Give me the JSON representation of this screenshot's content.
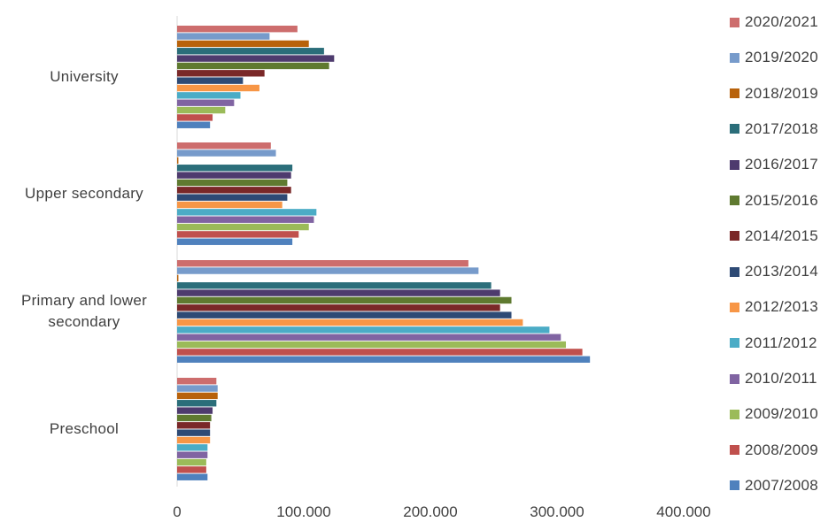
{
  "chart_data": {
    "type": "bar",
    "orientation": "horizontal",
    "title": "",
    "xlabel": "",
    "ylabel": "",
    "xlim": [
      0,
      400000
    ],
    "x_ticks": [
      "0",
      "100.000",
      "200.000",
      "300.000",
      "400.000"
    ],
    "grid": false,
    "legend_position": "right",
    "categories": [
      "University",
      "Upper secondary",
      "Primary and lower secondary",
      "Preschool"
    ],
    "category_labels": [
      [
        "University"
      ],
      [
        "Upper secondary"
      ],
      [
        "Primary and lower",
        "secondary"
      ],
      [
        "Preschool"
      ]
    ],
    "series": [
      {
        "name": "2020/2021",
        "color": "#CD6D6D",
        "values": [
          95000,
          74000,
          230000,
          31000
        ]
      },
      {
        "name": "2019/2020",
        "color": "#779BCB",
        "values": [
          73000,
          78000,
          238000,
          32000
        ]
      },
      {
        "name": "2018/2019",
        "color": "#B8620B",
        "values": [
          104000,
          1000,
          1000,
          32000
        ]
      },
      {
        "name": "2017/2018",
        "color": "#2B6E7A",
        "values": [
          116000,
          91000,
          248000,
          31000
        ]
      },
      {
        "name": "2016/2017",
        "color": "#4E3B6E",
        "values": [
          124000,
          90000,
          255000,
          28000
        ]
      },
      {
        "name": "2015/2016",
        "color": "#5F7A30",
        "values": [
          120000,
          87000,
          264000,
          27000
        ]
      },
      {
        "name": "2014/2015",
        "color": "#7A2828",
        "values": [
          69000,
          90000,
          255000,
          26000
        ]
      },
      {
        "name": "2013/2014",
        "color": "#2E4A75",
        "values": [
          52000,
          87000,
          264000,
          26000
        ]
      },
      {
        "name": "2012/2013",
        "color": "#F79646",
        "values": [
          65000,
          83000,
          273000,
          26000
        ]
      },
      {
        "name": "2011/2012",
        "color": "#4BACC6",
        "values": [
          50000,
          110000,
          294000,
          24000
        ]
      },
      {
        "name": "2010/2011",
        "color": "#8064A2",
        "values": [
          45000,
          108000,
          303000,
          24000
        ]
      },
      {
        "name": "2009/2010",
        "color": "#9BBB59",
        "values": [
          38000,
          104000,
          307000,
          23000
        ]
      },
      {
        "name": "2008/2009",
        "color": "#C0504D",
        "values": [
          28000,
          96000,
          320000,
          23000
        ]
      },
      {
        "name": "2007/2008",
        "color": "#4F81BD",
        "values": [
          26000,
          91000,
          326000,
          24000
        ]
      }
    ]
  }
}
